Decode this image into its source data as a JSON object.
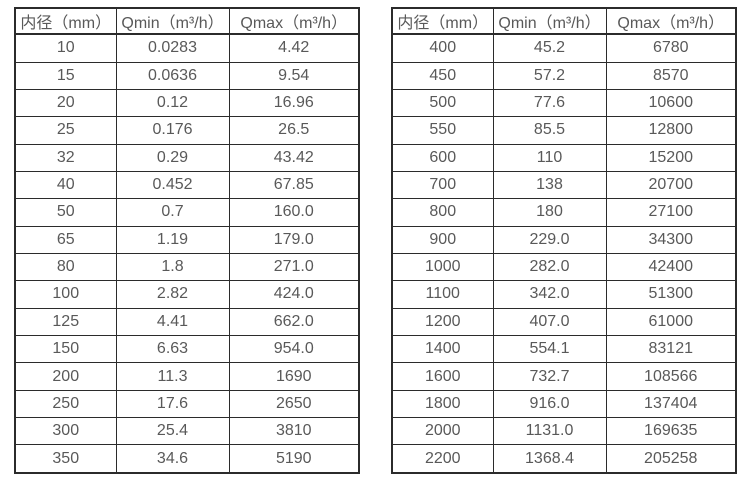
{
  "page": {
    "background": "#ffffff",
    "border_color": "#2b2b2b",
    "text_color": "#595959"
  },
  "tables": [
    {
      "name": "flow-table-small-diameters",
      "headers": [
        "内径（mm）",
        "Qmin（m³/h）",
        "Qmax（m³/h）"
      ],
      "rows": [
        [
          "10",
          "0.0283",
          "4.42"
        ],
        [
          "15",
          "0.0636",
          "9.54"
        ],
        [
          "20",
          "0.12",
          "16.96"
        ],
        [
          "25",
          "0.176",
          "26.5"
        ],
        [
          "32",
          "0.29",
          "43.42"
        ],
        [
          "40",
          "0.452",
          "67.85"
        ],
        [
          "50",
          "0.7",
          "160.0"
        ],
        [
          "65",
          "1.19",
          "179.0"
        ],
        [
          "80",
          "1.8",
          "271.0"
        ],
        [
          "100",
          "2.82",
          "424.0"
        ],
        [
          "125",
          "4.41",
          "662.0"
        ],
        [
          "150",
          "6.63",
          "954.0"
        ],
        [
          "200",
          "11.3",
          "1690"
        ],
        [
          "250",
          "17.6",
          "2650"
        ],
        [
          "300",
          "25.4",
          "3810"
        ],
        [
          "350",
          "34.6",
          "5190"
        ]
      ]
    },
    {
      "name": "flow-table-large-diameters",
      "headers": [
        "内径（mm）",
        "Qmin（m³/h）",
        "Qmax（m³/h）"
      ],
      "rows": [
        [
          "400",
          "45.2",
          "6780"
        ],
        [
          "450",
          "57.2",
          "8570"
        ],
        [
          "500",
          "77.6",
          "10600"
        ],
        [
          "550",
          "85.5",
          "12800"
        ],
        [
          "600",
          "110",
          "15200"
        ],
        [
          "700",
          "138",
          "20700"
        ],
        [
          "800",
          "180",
          "27100"
        ],
        [
          "900",
          "229.0",
          "34300"
        ],
        [
          "1000",
          "282.0",
          "42400"
        ],
        [
          "1100",
          "342.0",
          "51300"
        ],
        [
          "1200",
          "407.0",
          "61000"
        ],
        [
          "1400",
          "554.1",
          "83121"
        ],
        [
          "1600",
          "732.7",
          "108566"
        ],
        [
          "1800",
          "916.0",
          "137404"
        ],
        [
          "2000",
          "1131.0",
          "169635"
        ],
        [
          "2200",
          "1368.4",
          "205258"
        ]
      ]
    }
  ]
}
